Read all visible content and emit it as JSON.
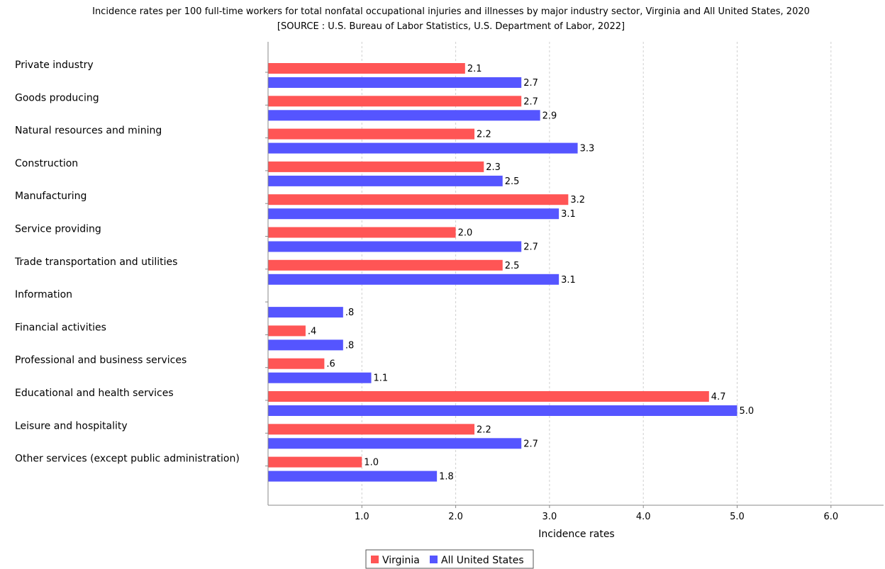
{
  "chart_data": {
    "type": "bar",
    "orientation": "horizontal",
    "title": "Incidence rates per 100 full-time workers for total nonfatal occupational injuries and illnesses by major industry sector, Virginia and All United States, 2020",
    "subtitle": "[SOURCE : U.S. Bureau of Labor Statistics, U.S. Department of Labor, 2022]",
    "xlabel": "Incidence rates",
    "ylabel": "",
    "xlim": [
      0,
      6.5
    ],
    "ticks": [
      1.0,
      2.0,
      3.0,
      4.0,
      5.0,
      6.0
    ],
    "tick_labels": [
      "1.0",
      "2.0",
      "3.0",
      "4.0",
      "5.0",
      "6.0"
    ],
    "grid": true,
    "legend_position": "bottom",
    "categories": [
      "Private industry",
      "Goods producing",
      "Natural resources and mining",
      "Construction",
      "Manufacturing",
      "Service providing",
      "Trade transportation and utilities",
      "Information",
      "Financial activities",
      "Professional and business services",
      "Educational and health services",
      "Leisure and hospitality",
      "Other services (except public administration)"
    ],
    "series": [
      {
        "name": "Virginia",
        "color": "#ff5555",
        "values": [
          2.1,
          2.7,
          2.2,
          2.3,
          3.2,
          2.0,
          2.5,
          null,
          0.4,
          0.6,
          4.7,
          2.2,
          1.0
        ],
        "labels": [
          "2.1",
          "2.7",
          "2.2",
          "2.3",
          "3.2",
          "2.0",
          "2.5",
          "",
          ".4",
          ".6",
          "4.7",
          "2.2",
          "1.0"
        ]
      },
      {
        "name": "All United States",
        "color": "#5555ff",
        "values": [
          2.7,
          2.9,
          3.3,
          2.5,
          3.1,
          2.7,
          3.1,
          0.8,
          0.8,
          1.1,
          5.0,
          2.7,
          1.8
        ],
        "labels": [
          "2.7",
          "2.9",
          "3.3",
          "2.5",
          "3.1",
          "2.7",
          "3.1",
          ".8",
          ".8",
          "1.1",
          "5.0",
          "2.7",
          "1.8"
        ]
      }
    ]
  }
}
